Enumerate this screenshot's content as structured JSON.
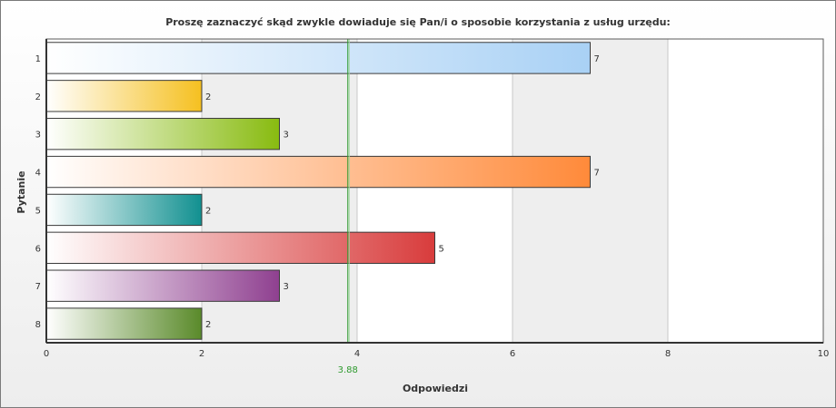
{
  "chart_data": {
    "type": "bar",
    "orientation": "horizontal",
    "title": "Proszę zaznaczyć skąd zwykle dowiaduje się Pan/i o sposobie korzystania z usług urzędu:",
    "xlabel": "Odpowiedzi",
    "ylabel": "Pytanie",
    "categories": [
      "1",
      "2",
      "3",
      "4",
      "5",
      "6",
      "7",
      "8"
    ],
    "values": [
      7,
      2,
      3,
      7,
      2,
      5,
      3,
      2
    ],
    "xlim": [
      0,
      10
    ],
    "xticks": [
      0,
      2,
      4,
      6,
      8,
      10
    ],
    "mean_line": {
      "value": 3.88,
      "label": "3.88",
      "color": "#2e9a2e"
    },
    "bar_colors": [
      "#a9d1f5",
      "#f5c020",
      "#88bb10",
      "#ff8a3a",
      "#119090",
      "#d83c3c",
      "#8f4090",
      "#5a8a2a"
    ],
    "grid": true,
    "legend": "none"
  }
}
